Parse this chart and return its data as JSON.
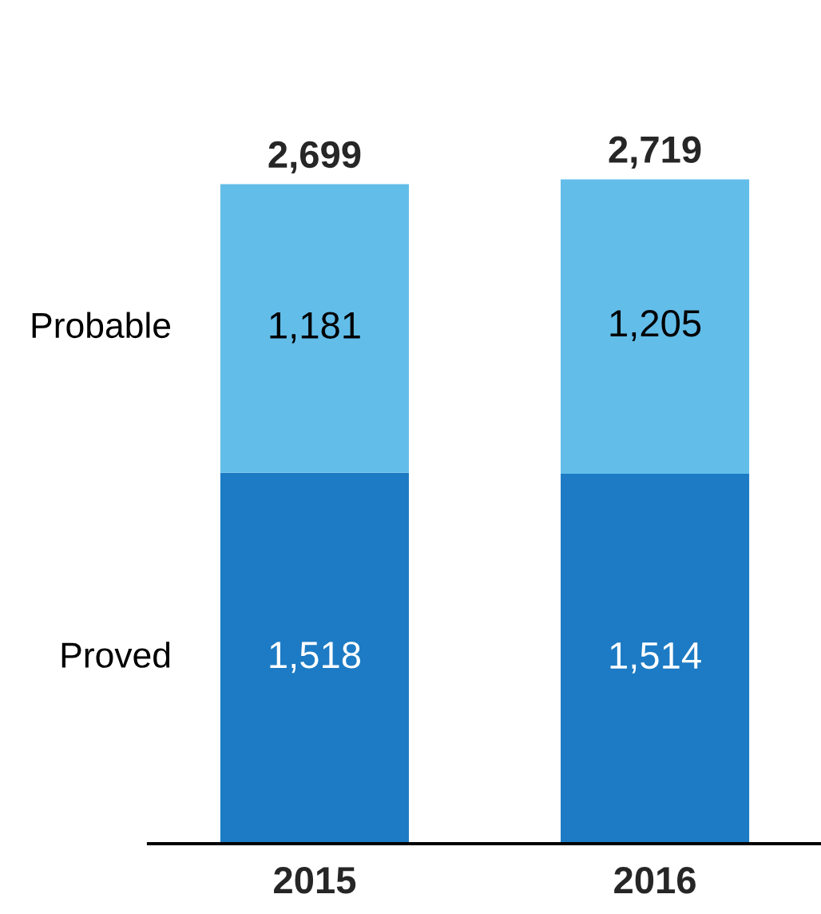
{
  "chart_data": {
    "type": "bar",
    "stacked": true,
    "categories": [
      "2015",
      "2016"
    ],
    "series": [
      {
        "name": "Proved",
        "color": "#1c7bc4",
        "values": [
          1518,
          1514
        ],
        "value_labels": [
          "1,518",
          "1,514"
        ]
      },
      {
        "name": "Probable",
        "color": "#62bde9",
        "values": [
          1181,
          1205
        ],
        "value_labels": [
          "1,181",
          "1,205"
        ]
      }
    ],
    "totals": [
      "2,699",
      "2,719"
    ],
    "grid": false,
    "legend": false
  }
}
